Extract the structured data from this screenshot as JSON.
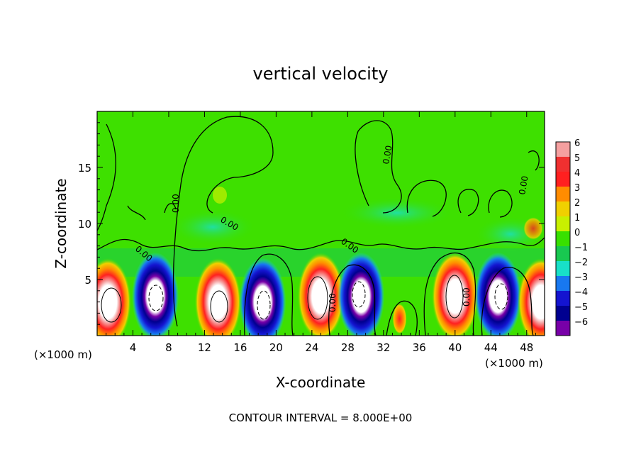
{
  "chart_data": {
    "type": "heatmap",
    "title": "vertical velocity",
    "xlabel": "X-coordinate",
    "ylabel": "Z-coordinate",
    "x_unit_left": "(×1000 m)",
    "x_unit_right": "(×1000 m)",
    "xlim": [
      0,
      50
    ],
    "ylim": [
      0,
      20
    ],
    "x_ticks": [
      4,
      8,
      12,
      16,
      20,
      24,
      28,
      32,
      36,
      40,
      44,
      48
    ],
    "y_ticks": [
      5,
      10,
      15
    ],
    "colorbar": {
      "ticks": [
        6,
        5,
        4,
        3,
        2,
        1,
        0,
        -1,
        -2,
        -3,
        -4,
        -5,
        -6
      ],
      "colors": [
        "#f5a0a0",
        "#f03030",
        "#ff2020",
        "#ff8c00",
        "#f0d000",
        "#c8f000",
        "#38e000",
        "#18c850",
        "#18e0c8",
        "#1878f0",
        "#1414d0",
        "#000090",
        "#7800a8"
      ]
    },
    "contour_labels": [
      "0.00",
      "0.00",
      "0.00",
      "0.00",
      "0.00",
      "0.00",
      "0.00",
      "0.00"
    ],
    "cells": [
      {
        "x": 1.2,
        "z": 3.0,
        "sign": "up"
      },
      {
        "x": 6.5,
        "z": 3.5,
        "sign": "down"
      },
      {
        "x": 13.5,
        "z": 3.0,
        "sign": "up"
      },
      {
        "x": 18.5,
        "z": 3.0,
        "sign": "down"
      },
      {
        "x": 25.0,
        "z": 3.5,
        "sign": "up"
      },
      {
        "x": 29.5,
        "z": 3.5,
        "sign": "down"
      },
      {
        "x": 33.8,
        "z": 1.5,
        "sign": "up"
      },
      {
        "x": 40.0,
        "z": 3.5,
        "sign": "up"
      },
      {
        "x": 44.8,
        "z": 3.5,
        "sign": "down"
      },
      {
        "x": 49.6,
        "z": 3.0,
        "sign": "up"
      }
    ],
    "footer": "CONTOUR INTERVAL = 8.000E+00"
  }
}
